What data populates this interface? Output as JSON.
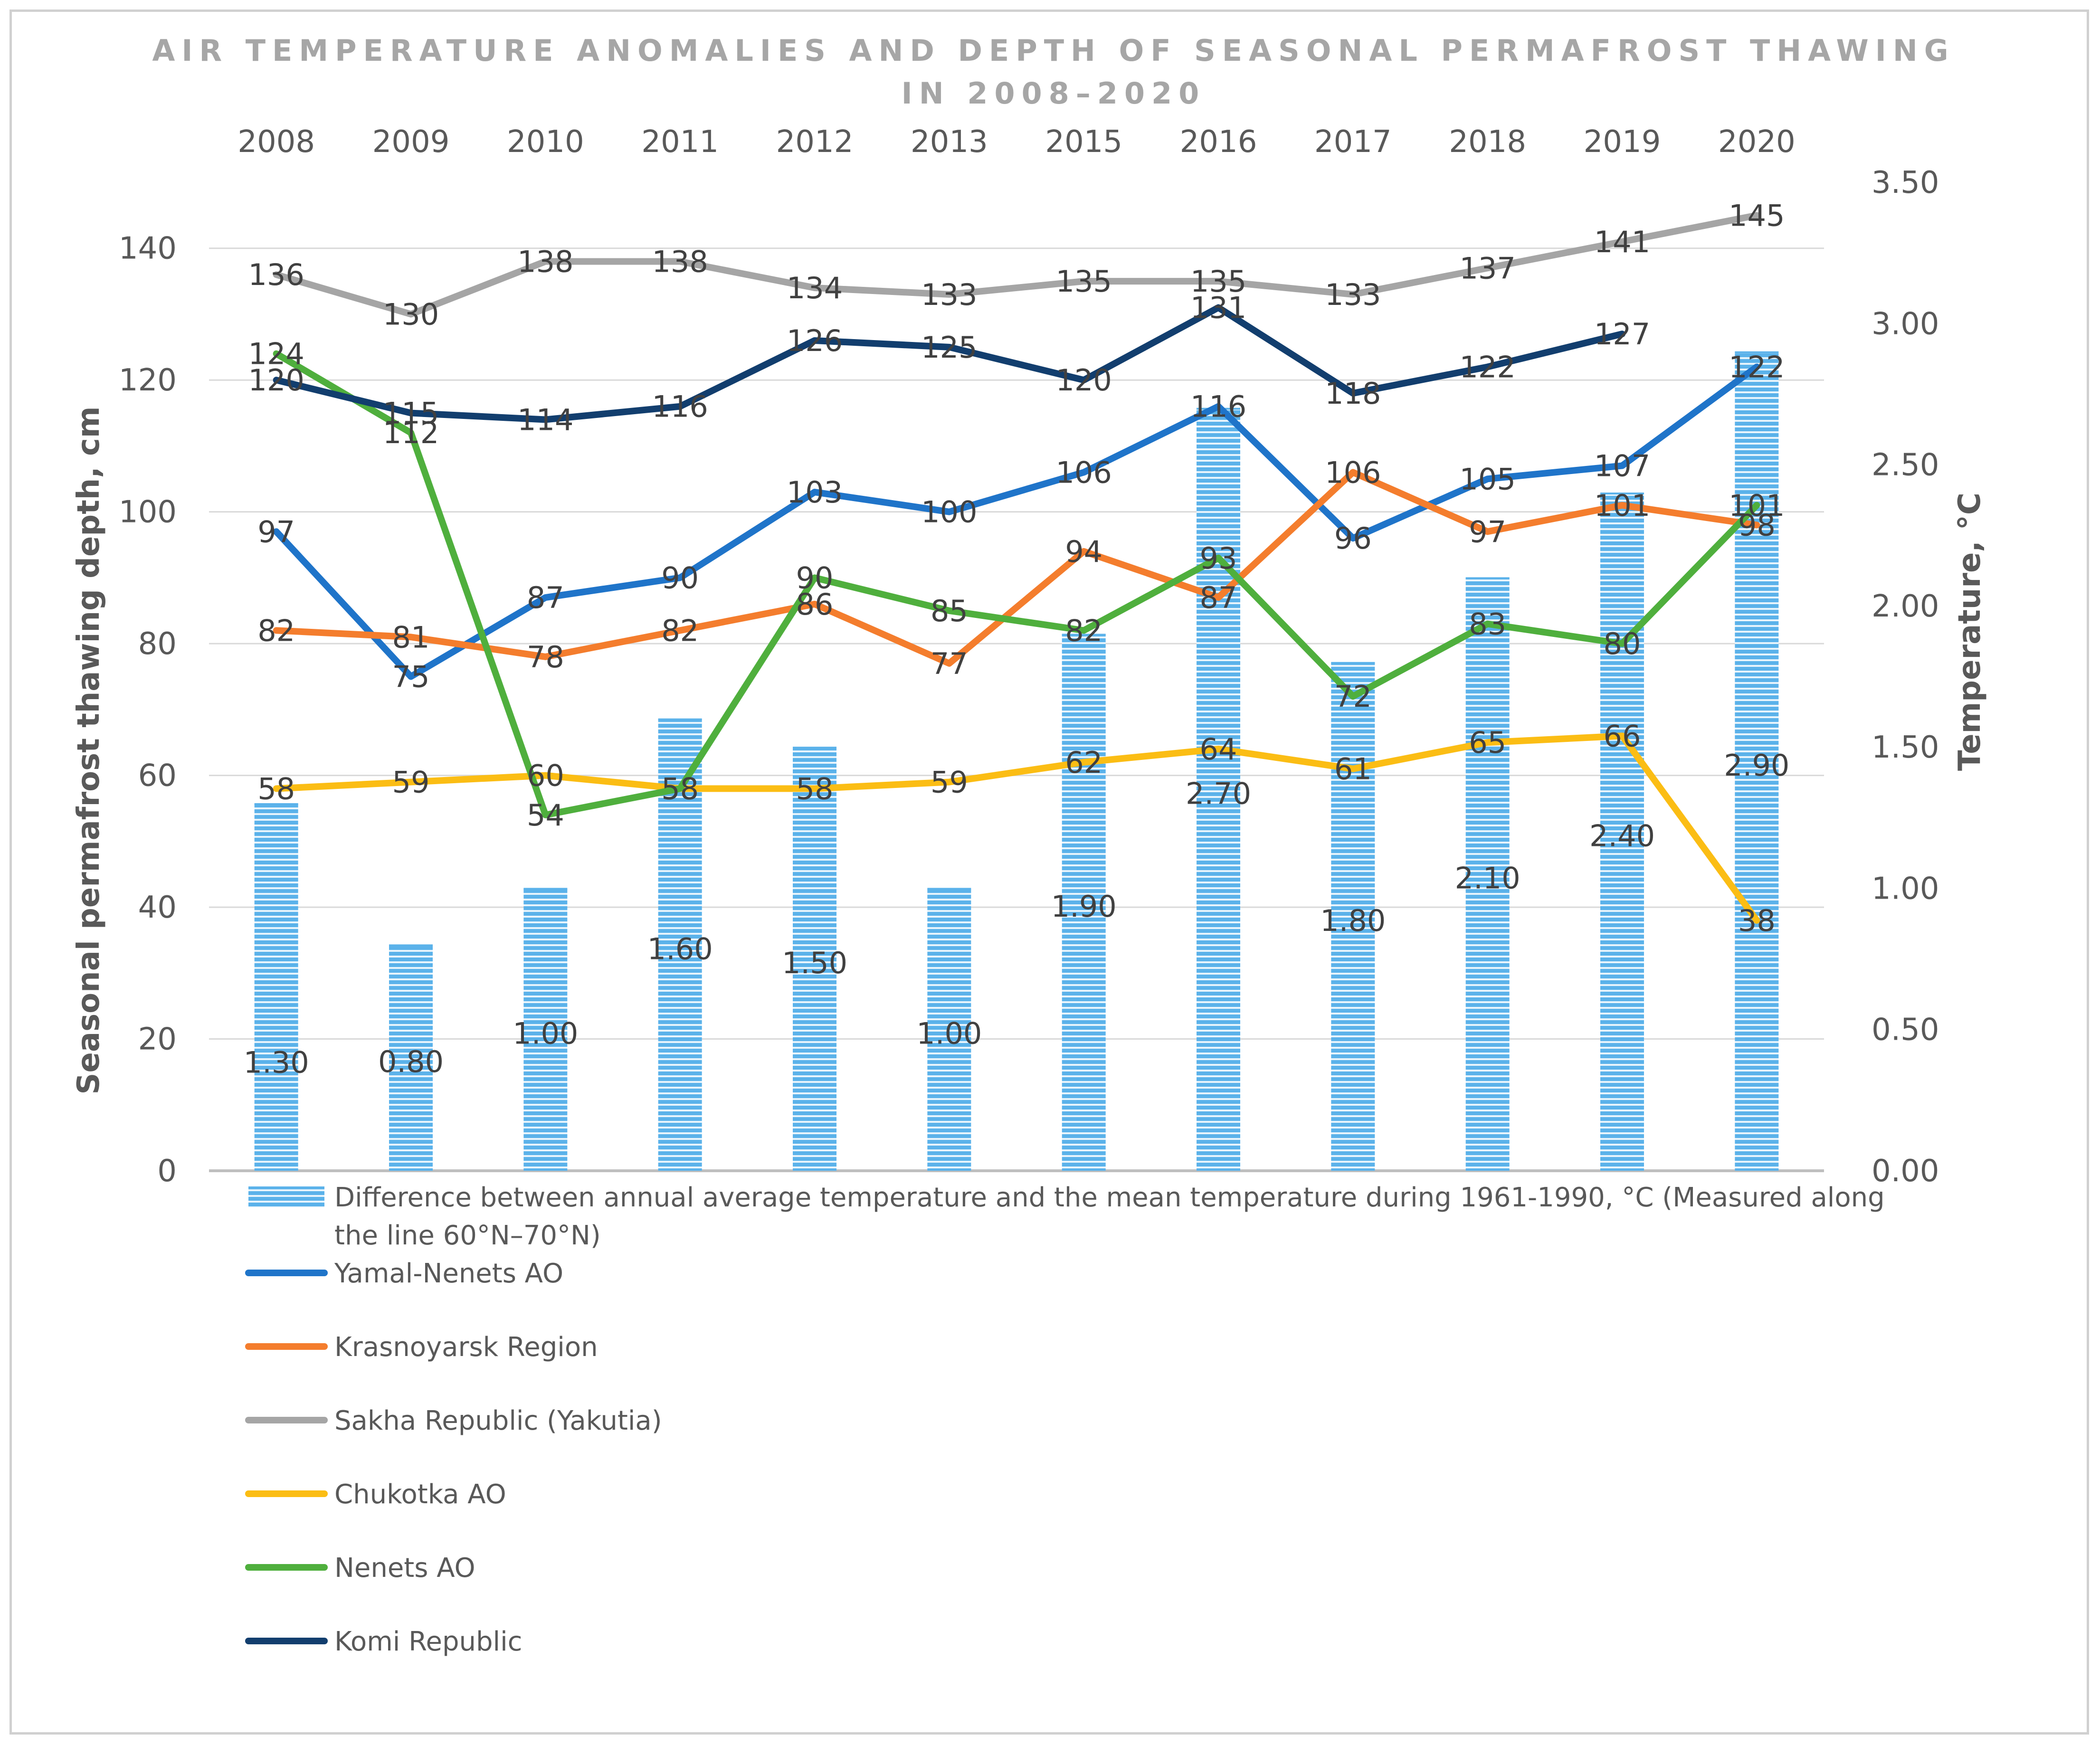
{
  "chart_data": {
    "type": "bar+line",
    "title_line1": "AIR TEMPERATURE ANOMALIES AND DEPTH OF SEASONAL PERMAFROST THAWING",
    "title_line2": "IN 2008–2020",
    "categories": [
      "2008",
      "2009",
      "2010",
      "2011",
      "2012",
      "2013",
      "2015",
      "2016",
      "2017",
      "2018",
      "2019",
      "2020"
    ],
    "ylabel_left": "Seasonal permafrost thawing depth, cm",
    "ylabel_right": "Temperature, °C",
    "ylim_left": [
      0,
      150
    ],
    "yticks_left": [
      "0",
      "20",
      "40",
      "60",
      "80",
      "100",
      "120",
      "140"
    ],
    "ylim_right": [
      0,
      3.5
    ],
    "yticks_right": [
      "0.00",
      "0.50",
      "1.00",
      "1.50",
      "2.00",
      "2.50",
      "3.00",
      "3.50"
    ],
    "bars": {
      "name": "Difference between annual average temperature and the mean temperature during 1961-1990, °C  (Measured along the line 60°N–70°N)",
      "axis": "right",
      "color": "#5bb2ea",
      "values": [
        1.3,
        0.8,
        1.0,
        1.6,
        1.5,
        1.0,
        1.9,
        2.7,
        1.8,
        2.1,
        2.4,
        2.9
      ],
      "labels": [
        "1.30",
        "0.80",
        "1.00",
        "1.60",
        "1.50",
        "1.00",
        "1.90",
        "2.70",
        "1.80",
        "2.10",
        "2.40",
        "2.90"
      ]
    },
    "series": [
      {
        "name": "Yamal-Nenets AO",
        "color": "#1f74c9",
        "values": [
          97,
          75,
          87,
          90,
          103,
          100,
          106,
          116,
          96,
          105,
          107,
          122
        ]
      },
      {
        "name": "Krasnoyarsk Region",
        "color": "#f47d2d",
        "values": [
          82,
          81,
          78,
          82,
          86,
          77,
          94,
          87,
          106,
          97,
          101,
          98
        ]
      },
      {
        "name": "Sakha Republic (Yakutia)",
        "color": "#a5a5a5",
        "values": [
          136,
          130,
          138,
          138,
          134,
          133,
          135,
          135,
          133,
          137,
          141,
          145
        ]
      },
      {
        "name": "Chukotka AO",
        "color": "#fbbd14",
        "values": [
          58,
          59,
          60,
          58,
          58,
          59,
          62,
          64,
          61,
          65,
          66,
          38
        ]
      },
      {
        "name": "Nenets AO",
        "color": "#4faf3d",
        "values": [
          124,
          112,
          54,
          58,
          90,
          85,
          82,
          93,
          72,
          83,
          80,
          101
        ]
      },
      {
        "name": "Komi Republic",
        "color": "#123e6e",
        "values": [
          120,
          115,
          114,
          116,
          126,
          125,
          120,
          131,
          118,
          122,
          127,
          null
        ]
      }
    ],
    "grid": true,
    "legend_position": "bottom"
  }
}
